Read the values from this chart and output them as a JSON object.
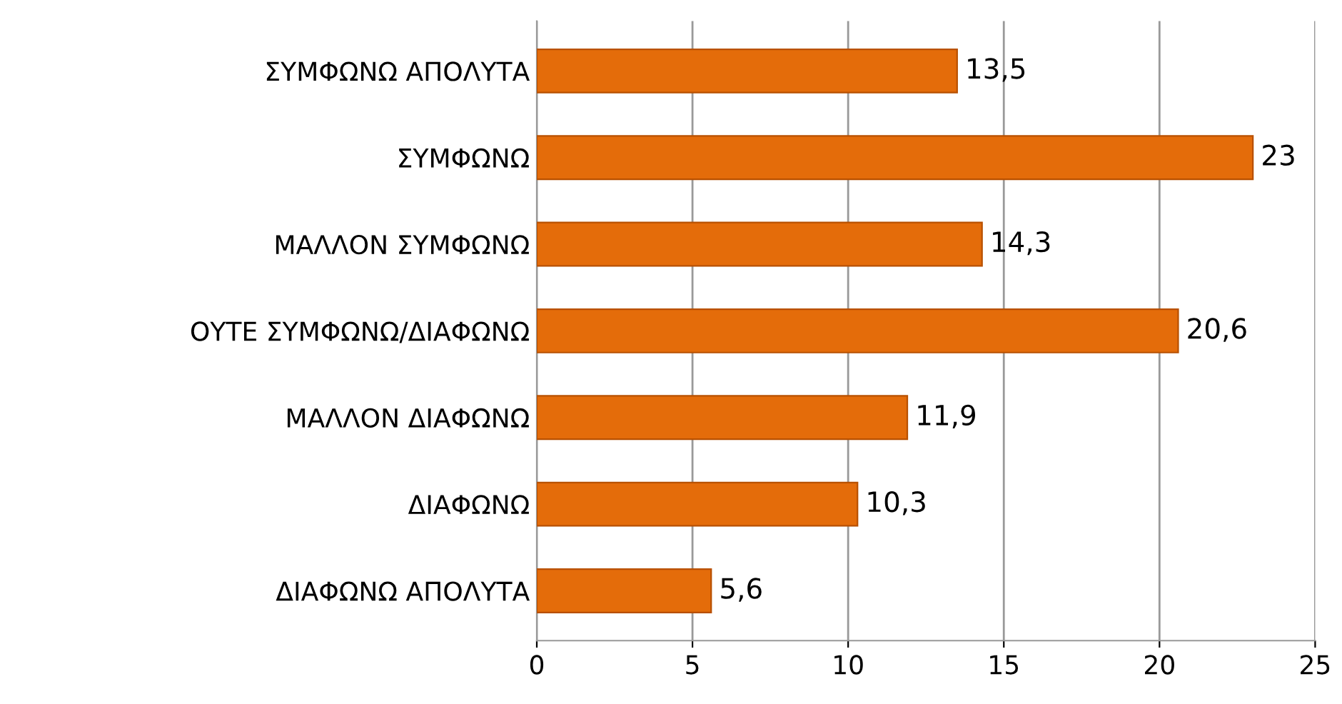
{
  "chart_data": {
    "type": "bar",
    "orientation": "horizontal",
    "categories": [
      "ΣΥΜΦΩΝΩ ΑΠΟΛΥΤΑ",
      "ΣΥΜΦΩΝΩ",
      "ΜΑΛΛΟΝ ΣΥΜΦΩΝΩ",
      "ΟΥΤΕ ΣΥΜΦΩΝΩ/ΔΙΑΦΩΝΩ",
      "ΜΑΛΛΟΝ ΔΙΑΦΩΝΩ",
      "ΔΙΑΦΩΝΩ",
      "ΔΙΑΦΩΝΩ ΑΠΟΛΥΤΑ"
    ],
    "values": [
      13.5,
      23,
      14.3,
      20.6,
      11.9,
      10.3,
      5.6
    ],
    "value_labels": [
      "13,5",
      "23",
      "14,3",
      "20,6",
      "11,9",
      "10,3",
      "5,6"
    ],
    "color": "#e46c0a",
    "xlim": [
      0,
      25
    ],
    "xticks": [
      0,
      5,
      10,
      15,
      20,
      25
    ],
    "grid": "x"
  }
}
